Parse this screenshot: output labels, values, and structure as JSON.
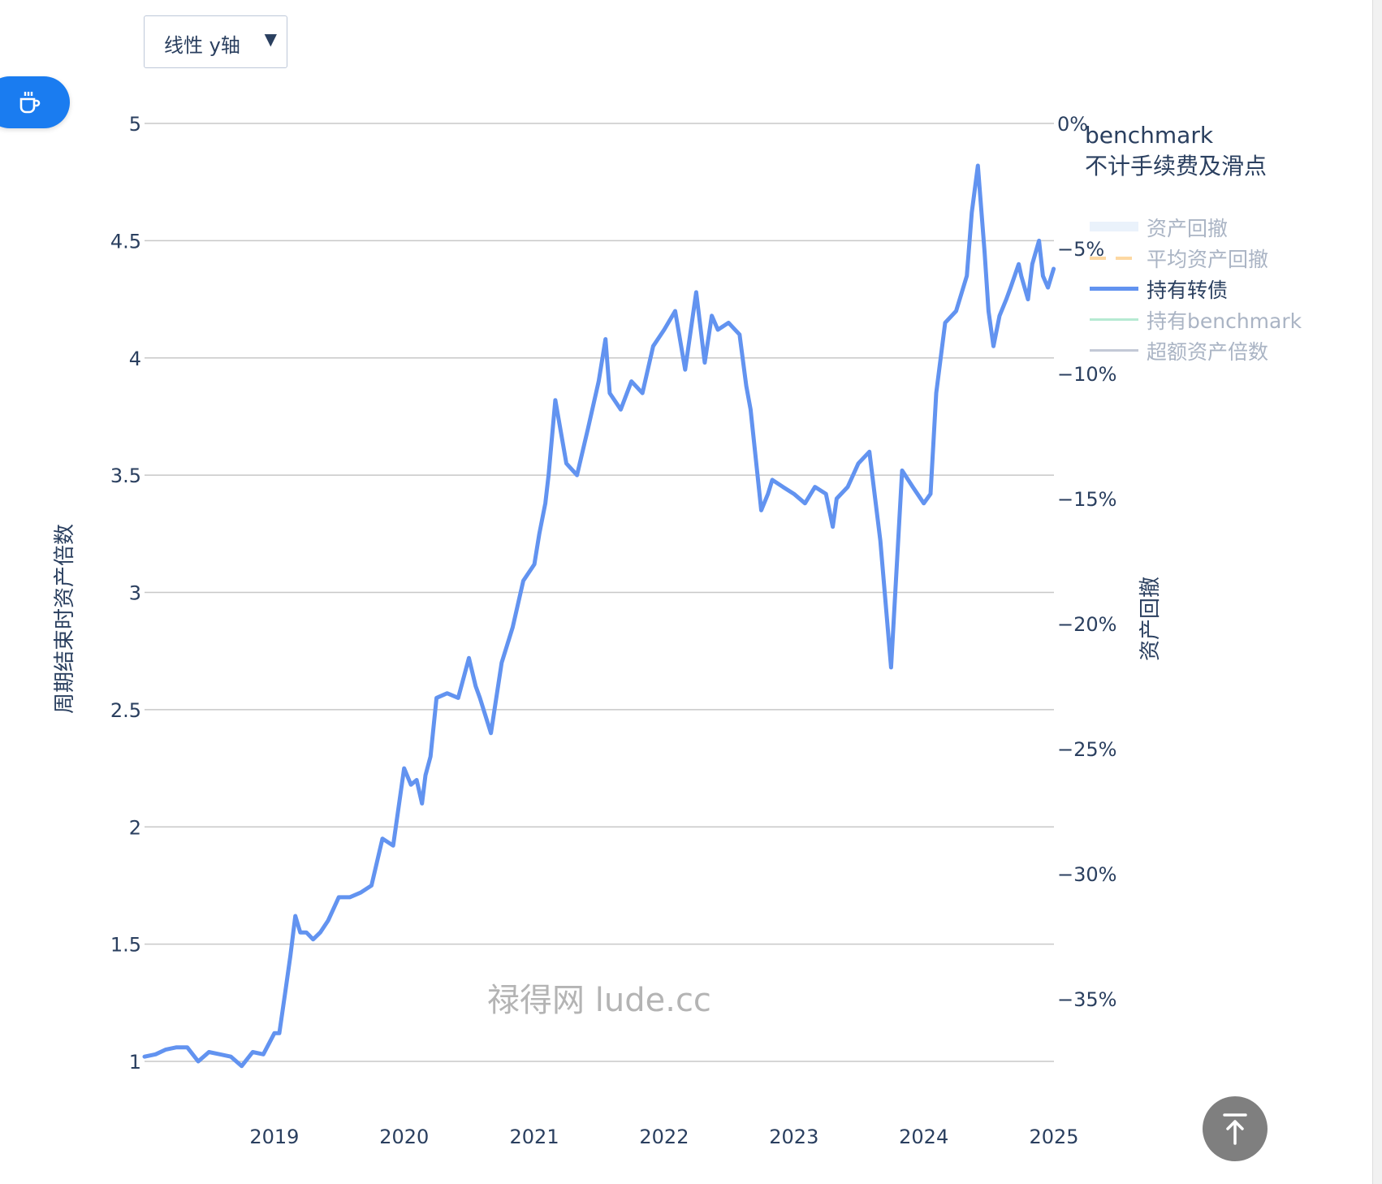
{
  "controls": {
    "y_scale_dropdown": {
      "label": "线性 y轴",
      "arrow": "▼"
    }
  },
  "watermark": "禄得网 lude.cc",
  "colors": {
    "primary_series": "#6293f0",
    "drawdown_fill": "#eaf2fb",
    "avg_drawdown": "#fdd8a2",
    "benchmark": "#b6ead2",
    "excess": "#c3c9d6",
    "grid": "#c8c8c8",
    "text": "#2a3f5f",
    "coffee_button": "#1a7cf0",
    "back_to_top": "#7f7f7f"
  },
  "icons": {
    "coffee": "coffee-cup-icon",
    "back_to_top": "arrow-up-to-line-icon"
  },
  "chart_data": {
    "type": "line",
    "title": "",
    "legend": {
      "title_lines": [
        "benchmark",
        "不计手续费及滑点"
      ],
      "placement": "right",
      "entries": [
        {
          "name": "资产回撤",
          "style": "fill",
          "active": false
        },
        {
          "name": "平均资产回撤",
          "style": "dashed",
          "active": false
        },
        {
          "name": "持有转债",
          "style": "line",
          "active": true
        },
        {
          "name": "持有benchmark",
          "style": "line",
          "active": false
        },
        {
          "name": "超额资产倍数",
          "style": "line",
          "active": false
        }
      ]
    },
    "x_axis": {
      "type": "date",
      "range": [
        "2018-01-01",
        "2025-01-01"
      ],
      "tick_labels": [
        "2019",
        "2020",
        "2021",
        "2022",
        "2023",
        "2024",
        "2025"
      ],
      "tick_values": [
        "2019-01-01",
        "2020-01-01",
        "2021-01-01",
        "2022-01-01",
        "2023-01-01",
        "2024-01-01",
        "2025-01-01"
      ]
    },
    "y_axis": {
      "label": "周期结束时资产倍数",
      "range": [
        1.0,
        5.0
      ],
      "tick_values": [
        1,
        1.5,
        2,
        2.5,
        3,
        3.5,
        4,
        4.5,
        5
      ],
      "tick_labels": [
        "1",
        "1.5",
        "2",
        "2.5",
        "3",
        "3.5",
        "4",
        "4.5",
        "5"
      ],
      "grid": true
    },
    "y2_axis": {
      "label": "资产回撤",
      "range": [
        -37.5,
        0
      ],
      "tick_values": [
        0,
        -5,
        -10,
        -15,
        -20,
        -25,
        -30,
        -35
      ],
      "tick_labels": [
        "0%",
        "−5%",
        "−10%",
        "−15%",
        "−20%",
        "−25%",
        "−30%",
        "−35%"
      ]
    },
    "series": [
      {
        "name": "持有转债",
        "x": [
          "2018-01-01",
          "2018-02-01",
          "2018-03-01",
          "2018-04-01",
          "2018-05-01",
          "2018-06-01",
          "2018-07-01",
          "2018-08-01",
          "2018-09-01",
          "2018-10-01",
          "2018-11-01",
          "2018-12-01",
          "2019-01-01",
          "2019-01-15",
          "2019-02-01",
          "2019-02-15",
          "2019-03-01",
          "2019-03-15",
          "2019-04-01",
          "2019-04-20",
          "2019-05-10",
          "2019-06-01",
          "2019-07-01",
          "2019-08-01",
          "2019-09-01",
          "2019-10-01",
          "2019-11-01",
          "2019-12-01",
          "2020-01-01",
          "2020-01-20",
          "2020-02-05",
          "2020-02-20",
          "2020-03-01",
          "2020-03-15",
          "2020-04-01",
          "2020-05-01",
          "2020-06-01",
          "2020-07-01",
          "2020-07-20",
          "2020-08-01",
          "2020-09-01",
          "2020-10-01",
          "2020-11-01",
          "2020-12-01",
          "2021-01-01",
          "2021-01-15",
          "2021-02-01",
          "2021-02-10",
          "2021-03-01",
          "2021-04-01",
          "2021-05-01",
          "2021-06-01",
          "2021-07-01",
          "2021-07-20",
          "2021-08-01",
          "2021-09-01",
          "2021-10-01",
          "2021-11-01",
          "2021-12-01",
          "2022-01-01",
          "2022-02-01",
          "2022-03-01",
          "2022-04-01",
          "2022-04-25",
          "2022-05-15",
          "2022-06-01",
          "2022-07-01",
          "2022-08-01",
          "2022-08-20",
          "2022-09-01",
          "2022-10-01",
          "2022-10-20",
          "2022-11-01",
          "2022-12-01",
          "2023-01-01",
          "2023-02-01",
          "2023-03-01",
          "2023-04-01",
          "2023-04-20",
          "2023-05-01",
          "2023-06-01",
          "2023-07-01",
          "2023-08-01",
          "2023-09-01",
          "2023-10-01",
          "2023-11-01",
          "2023-12-01",
          "2024-01-01",
          "2024-01-20",
          "2024-02-05",
          "2024-03-01",
          "2024-04-01",
          "2024-05-01",
          "2024-05-15",
          "2024-06-01",
          "2024-06-20",
          "2024-07-01",
          "2024-07-15",
          "2024-08-01",
          "2024-08-20",
          "2024-09-01",
          "2024-09-24",
          "2024-10-01",
          "2024-10-20",
          "2024-11-01",
          "2024-11-20",
          "2024-12-01",
          "2024-12-15",
          "2024-12-31"
        ],
        "values": [
          1.02,
          1.03,
          1.05,
          1.06,
          1.06,
          1.0,
          1.04,
          1.03,
          1.02,
          0.98,
          1.04,
          1.03,
          1.12,
          1.12,
          1.3,
          1.45,
          1.62,
          1.55,
          1.55,
          1.52,
          1.55,
          1.6,
          1.7,
          1.7,
          1.72,
          1.75,
          1.95,
          1.92,
          2.25,
          2.18,
          2.2,
          2.1,
          2.22,
          2.3,
          2.55,
          2.57,
          2.55,
          2.72,
          2.6,
          2.55,
          2.4,
          2.7,
          2.85,
          3.05,
          3.12,
          3.25,
          3.38,
          3.5,
          3.82,
          3.55,
          3.5,
          3.7,
          3.9,
          4.08,
          3.85,
          3.78,
          3.9,
          3.85,
          4.05,
          4.12,
          4.2,
          3.95,
          4.28,
          3.98,
          4.18,
          4.12,
          4.15,
          4.1,
          3.88,
          3.78,
          3.35,
          3.42,
          3.48,
          3.45,
          3.42,
          3.38,
          3.45,
          3.42,
          3.28,
          3.4,
          3.45,
          3.55,
          3.6,
          3.22,
          2.68,
          3.52,
          3.45,
          3.38,
          3.42,
          3.85,
          4.15,
          4.2,
          4.35,
          4.62,
          4.82,
          4.45,
          4.2,
          4.05,
          4.18,
          4.25,
          4.3,
          4.4,
          4.35,
          4.25,
          4.4,
          4.5,
          4.35,
          4.3,
          4.38
        ]
      }
    ]
  }
}
